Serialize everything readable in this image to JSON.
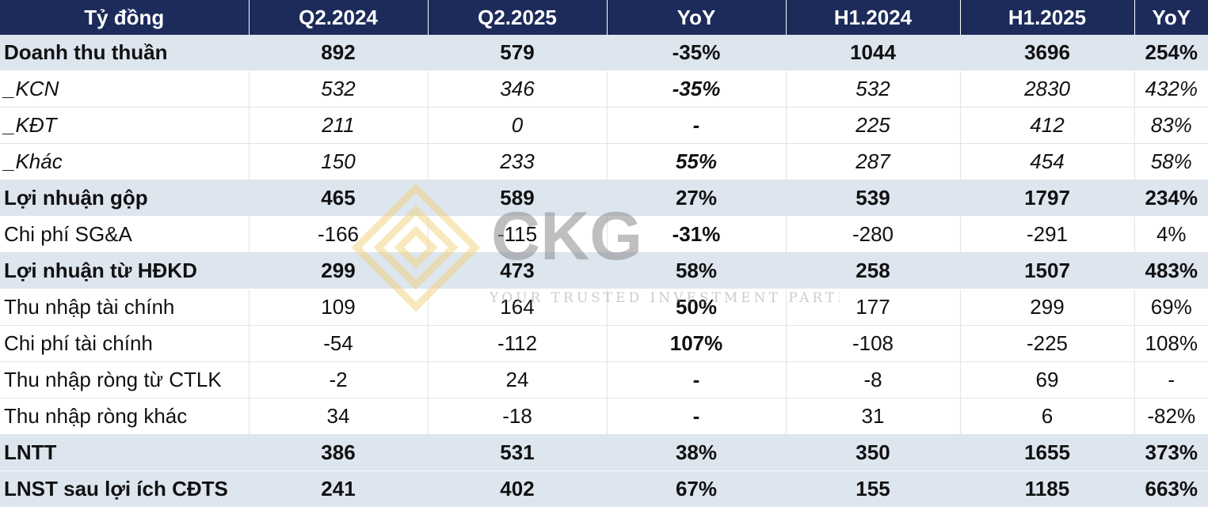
{
  "watermark": {
    "brand": "CKG",
    "tagline": "YOUR TRUSTED INVESTMENT PARTNER"
  },
  "table": {
    "headers": [
      "Tỷ đồng",
      "Q2.2024",
      "Q2.2025",
      "YoY",
      "H1.2024",
      "H1.2025",
      "YoY"
    ],
    "rows": [
      {
        "style": "bold",
        "cells": [
          "Doanh thu thuần",
          "892",
          "579",
          "-35%",
          "1044",
          "3696",
          "254%"
        ]
      },
      {
        "style": "italic",
        "cells": [
          "_KCN",
          "532",
          "346",
          "-35%",
          "532",
          "2830",
          "432%"
        ]
      },
      {
        "style": "italic",
        "cells": [
          "_KĐT",
          "211",
          "0",
          "-",
          "225",
          "412",
          "83%"
        ]
      },
      {
        "style": "italic",
        "cells": [
          "_Khác",
          "150",
          "233",
          "55%",
          "287",
          "454",
          "58%"
        ]
      },
      {
        "style": "bold",
        "cells": [
          "Lợi nhuận gộp",
          "465",
          "589",
          "27%",
          "539",
          "1797",
          "234%"
        ]
      },
      {
        "style": "normal",
        "cells": [
          "Chi phí SG&A",
          "-166",
          "-115",
          "-31%",
          "-280",
          "-291",
          "4%"
        ]
      },
      {
        "style": "bold",
        "cells": [
          "Lợi nhuận từ HĐKD",
          "299",
          "473",
          "58%",
          "258",
          "1507",
          "483%"
        ]
      },
      {
        "style": "normal",
        "cells": [
          "Thu nhập tài chính",
          "109",
          "164",
          "50%",
          "177",
          "299",
          "69%"
        ]
      },
      {
        "style": "normal",
        "cells": [
          "Chi phí tài chính",
          "-54",
          "-112",
          "107%",
          "-108",
          "-225",
          "108%"
        ]
      },
      {
        "style": "normal",
        "cells": [
          "Thu nhập ròng từ CTLK",
          "-2",
          "24",
          "-",
          "-8",
          "69",
          "-"
        ]
      },
      {
        "style": "normal",
        "cells": [
          "Thu nhập ròng khác",
          "34",
          "-18",
          "-",
          "31",
          "6",
          "-82%"
        ]
      },
      {
        "style": "bold",
        "cells": [
          "LNTT",
          "386",
          "531",
          "38%",
          "350",
          "1655",
          "373%"
        ]
      },
      {
        "style": "bold",
        "cells": [
          "LNST sau lợi ích CĐTS",
          "241",
          "402",
          "67%",
          "155",
          "1185",
          "663%"
        ]
      }
    ]
  }
}
